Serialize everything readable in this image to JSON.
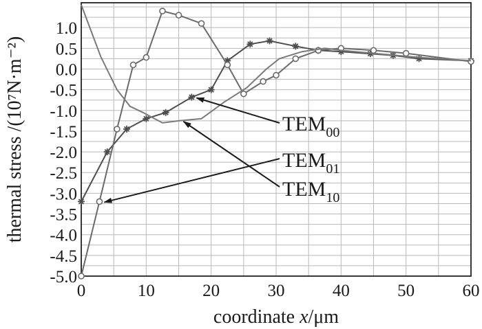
{
  "chart_data": {
    "type": "line",
    "xlabel_prefix": "coordinate ",
    "xlabel_var": "x",
    "xlabel_unit": "/μm",
    "ylabel": "thermal stress /(10⁷N·m⁻²)",
    "xlim": [
      0,
      60
    ],
    "ylim": [
      -5.0,
      1.6
    ],
    "xticks": [
      "0",
      "10",
      "20",
      "30",
      "40",
      "50",
      "60"
    ],
    "yticks": [
      "1.0",
      "0.5",
      "0.0",
      "-0.5",
      "-1.0",
      "-1.5",
      "-2.0",
      "-2.5",
      "-3.0",
      "-3.5",
      "-4.0",
      "-4.5",
      "-5.0"
    ],
    "grid": true,
    "series": [
      {
        "name": "TEM00",
        "marker": "star",
        "color": "#4d4d4d",
        "x": [
          0,
          4,
          7,
          10,
          13,
          17,
          20,
          22.5,
          26,
          29,
          33,
          36.5,
          40,
          44.5,
          48,
          52,
          60
        ],
        "y": [
          -3.2,
          -2.0,
          -1.45,
          -1.2,
          -1.05,
          -0.68,
          -0.5,
          0.2,
          0.6,
          0.68,
          0.55,
          0.45,
          0.42,
          0.37,
          0.33,
          0.25,
          0.2
        ]
      },
      {
        "name": "TEM01",
        "marker": "circle",
        "color": "#6a6a6a",
        "x": [
          0,
          2.8,
          5.5,
          8,
          10,
          12.5,
          15,
          18.5,
          22.5,
          25,
          28,
          30,
          33,
          36.5,
          40,
          45,
          50,
          60
        ],
        "y": [
          -5.0,
          -3.2,
          -1.45,
          0.1,
          0.28,
          1.4,
          1.3,
          1.1,
          0.1,
          -0.6,
          -0.3,
          -0.15,
          0.25,
          0.45,
          0.5,
          0.45,
          0.38,
          0.18
        ]
      },
      {
        "name": "TEM10",
        "marker": "diamond",
        "color": "#7a7a7a",
        "x": [
          0,
          3,
          5.5,
          7.5,
          9.5,
          12.5,
          15,
          18.5,
          22,
          25.5,
          28.5,
          30.5,
          34,
          37.5,
          40,
          45,
          52,
          60
        ],
        "y": [
          1.55,
          0.3,
          -0.5,
          -0.9,
          -1.05,
          -1.3,
          -1.25,
          -1.2,
          -0.8,
          -0.45,
          0.0,
          0.25,
          0.42,
          0.5,
          0.45,
          0.38,
          0.28,
          0.2
        ]
      }
    ],
    "annotations": [
      {
        "base": "TEM",
        "sub": "00",
        "target": [
          17,
          -0.68
        ]
      },
      {
        "base": "TEM",
        "sub": "01",
        "target": [
          2.8,
          -3.2
        ]
      },
      {
        "base": "TEM",
        "sub": "10",
        "target": [
          15,
          -1.25
        ]
      }
    ]
  }
}
